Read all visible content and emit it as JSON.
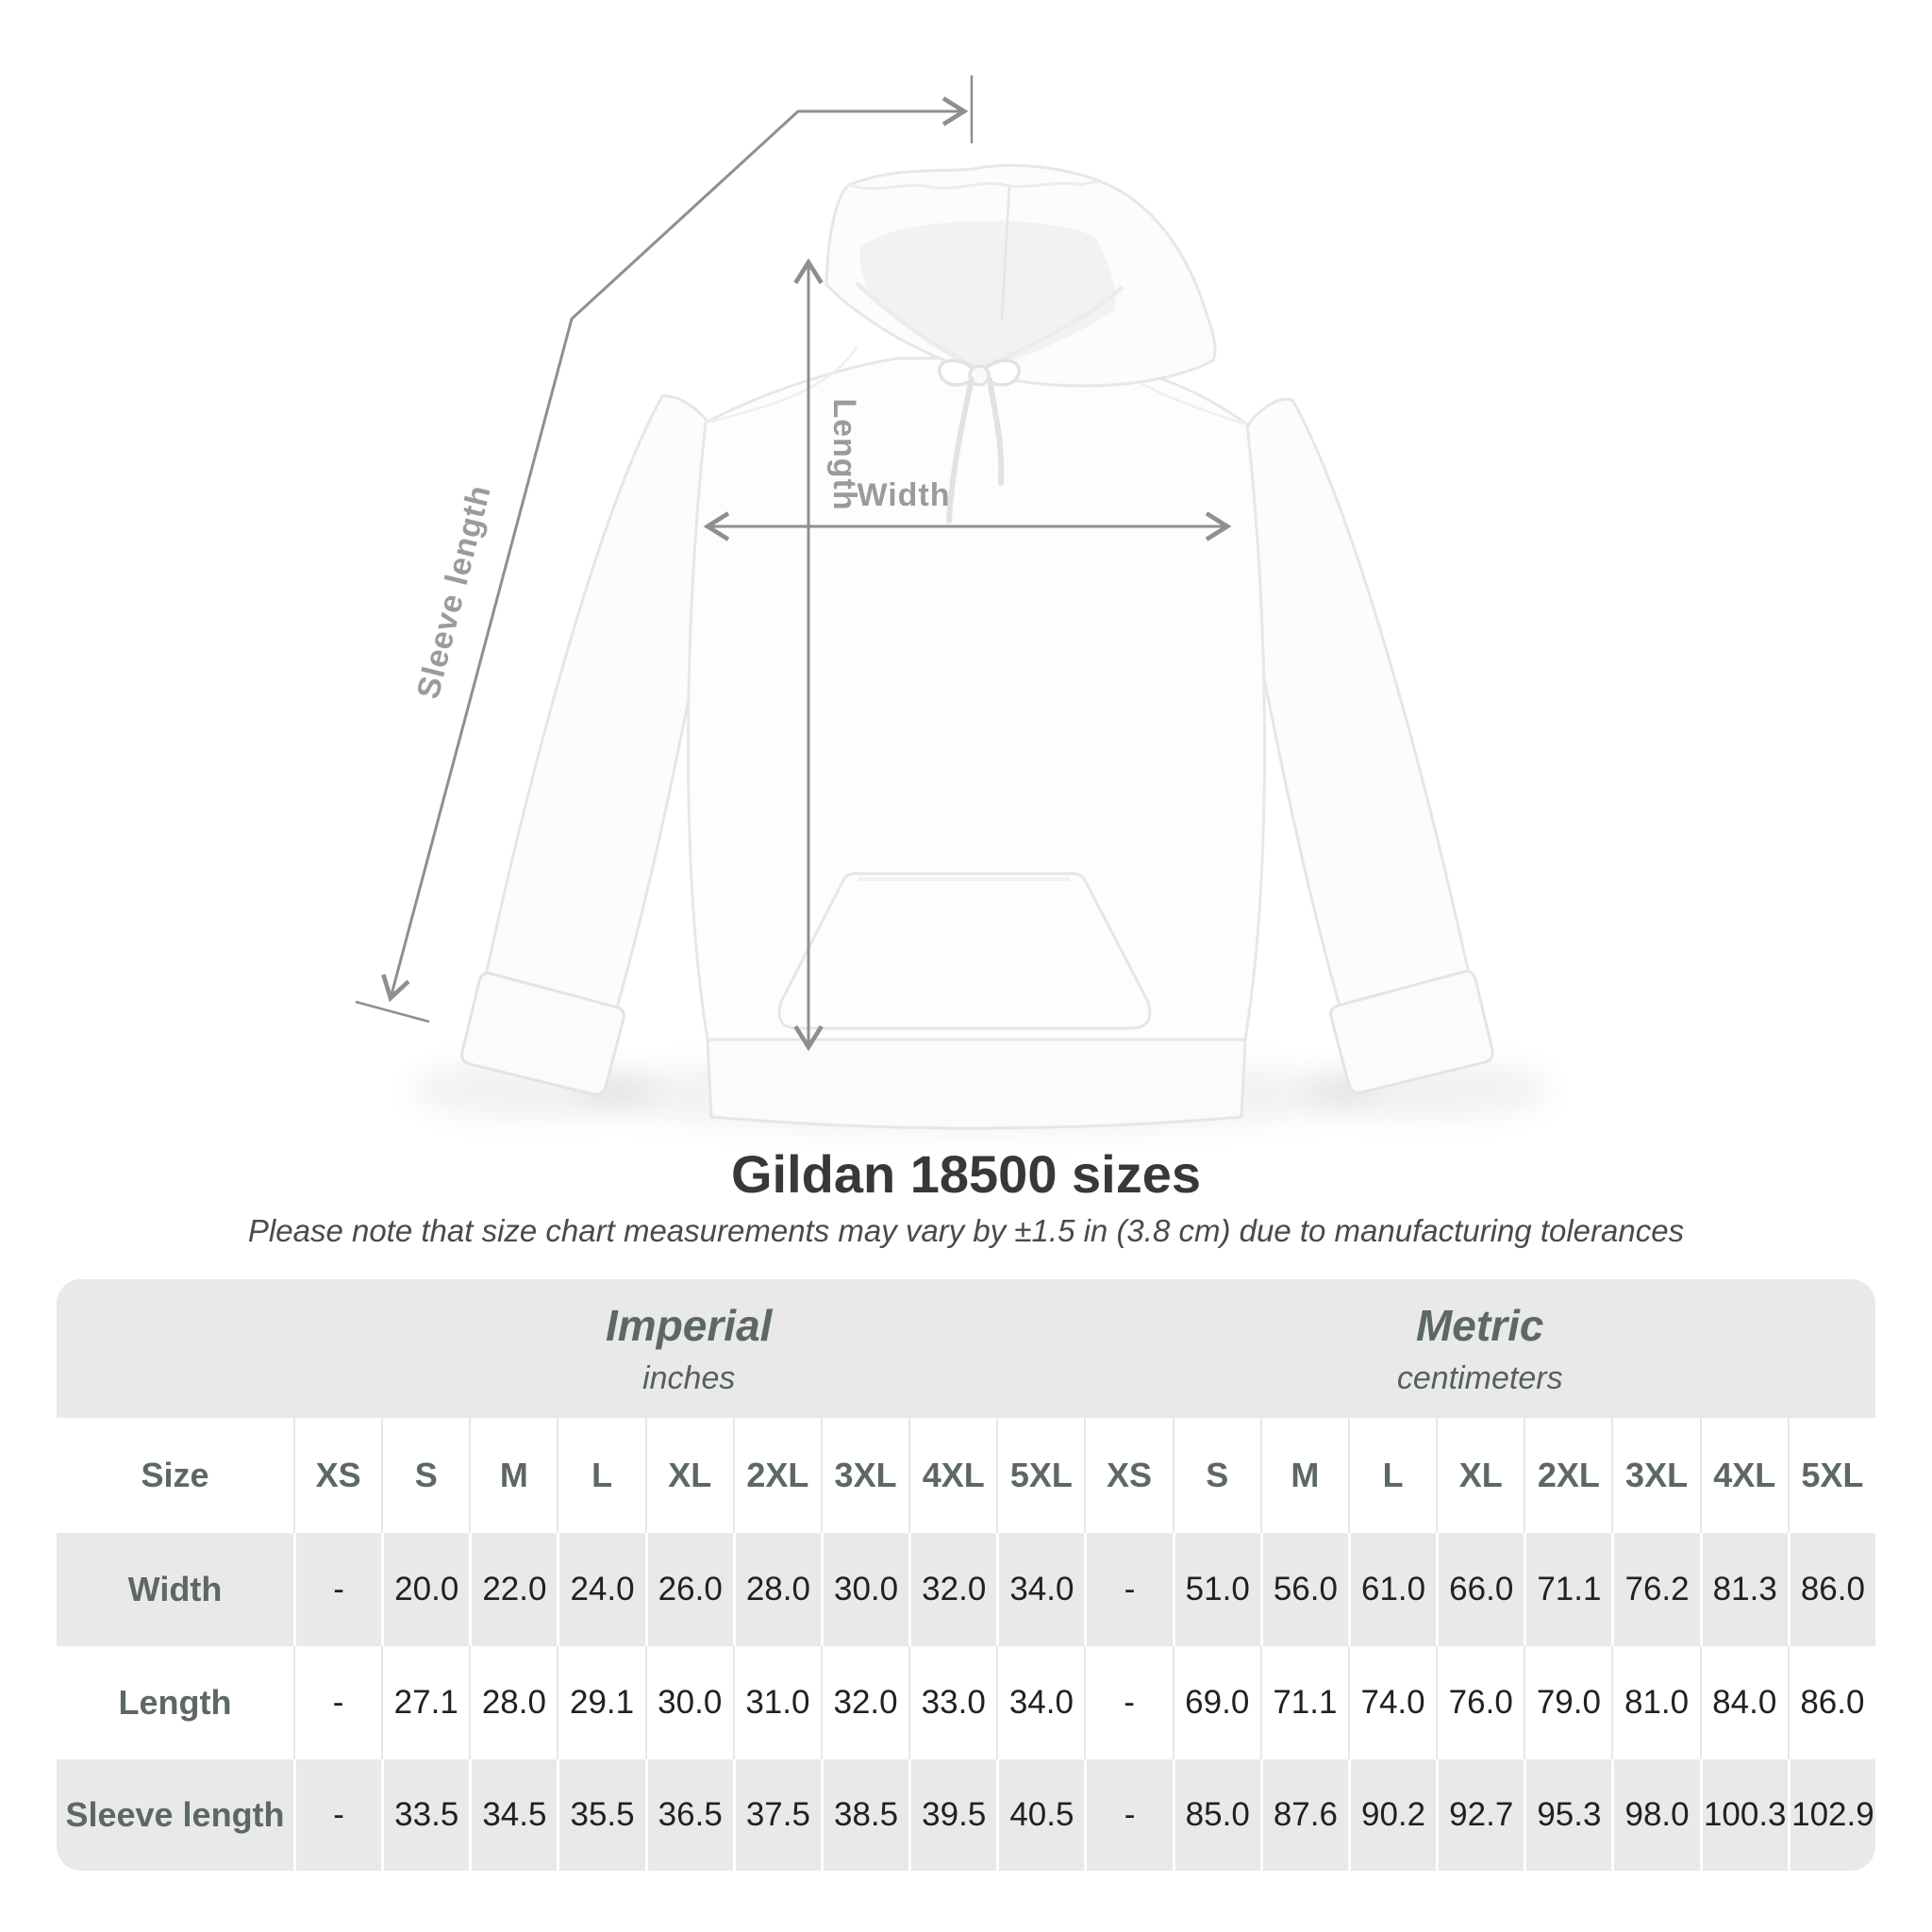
{
  "title": "Gildan 18500 sizes",
  "subtitle": "Please note that size chart measurements may vary by ±1.5 in (3.8 cm) due to manufacturing tolerances",
  "diagram": {
    "length_label": "Length",
    "width_label": "Width",
    "sleeve_label": "Sleeve length"
  },
  "table": {
    "unit_groups": [
      {
        "label": "Imperial",
        "sublabel": "inches"
      },
      {
        "label": "Metric",
        "sublabel": "centimeters"
      }
    ],
    "size_header": "Size",
    "sizes": [
      "XS",
      "S",
      "M",
      "L",
      "XL",
      "2XL",
      "3XL",
      "4XL",
      "5XL"
    ],
    "rows": [
      {
        "label": "Width",
        "imperial": [
          "-",
          "20.0",
          "22.0",
          "24.0",
          "26.0",
          "28.0",
          "30.0",
          "32.0",
          "34.0"
        ],
        "metric": [
          "-",
          "51.0",
          "56.0",
          "61.0",
          "66.0",
          "71.1",
          "76.2",
          "81.3",
          "86.0"
        ]
      },
      {
        "label": "Length",
        "imperial": [
          "-",
          "27.1",
          "28.0",
          "29.1",
          "30.0",
          "31.0",
          "32.0",
          "33.0",
          "34.0"
        ],
        "metric": [
          "-",
          "69.0",
          "71.1",
          "74.0",
          "76.0",
          "79.0",
          "81.0",
          "84.0",
          "86.0"
        ]
      },
      {
        "label": "Sleeve length",
        "imperial": [
          "-",
          "33.5",
          "34.5",
          "35.5",
          "36.5",
          "37.5",
          "38.5",
          "39.5",
          "40.5"
        ],
        "metric": [
          "-",
          "85.0",
          "87.6",
          "90.2",
          "92.7",
          "95.3",
          "98.0",
          "100.3",
          "102.9"
        ]
      }
    ]
  },
  "colors": {
    "measure_line": "#8f8f8f",
    "measure_label": "#9b9b9b",
    "band_gray": "#e9e9e9",
    "header_text": "#5d6767",
    "number_text": "#212121"
  }
}
